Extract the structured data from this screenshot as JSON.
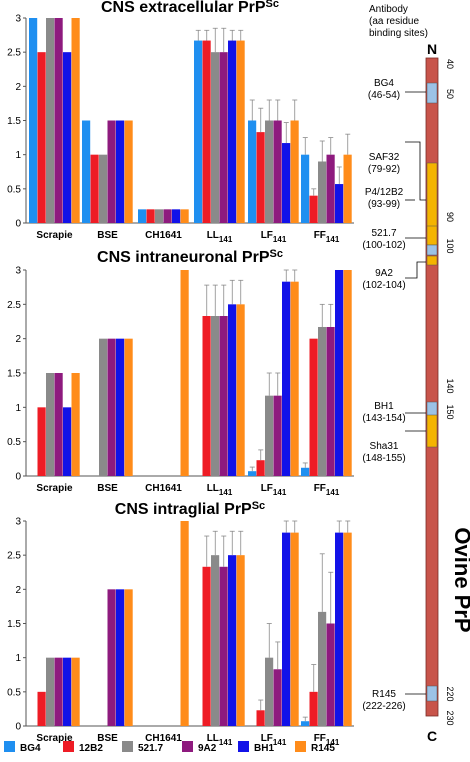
{
  "chart_data": [
    {
      "type": "bar",
      "title": "CNS extracellular PrP",
      "title_sup": "Sc",
      "categories": [
        "Scrapie",
        "BSE",
        "CH1641",
        "LL",
        "LF",
        "FF"
      ],
      "category_subscripts": [
        "",
        "",
        "",
        "141",
        "141",
        "141"
      ],
      "ylim": [
        0,
        3
      ],
      "yticks": [
        "0",
        "0.5",
        "1",
        "1.5",
        "2",
        "2.5",
        "3"
      ],
      "series": [
        {
          "name": "BG4",
          "values": [
            3.0,
            1.5,
            0.2,
            2.67,
            1.5,
            1.0
          ],
          "errors": [
            0,
            0,
            0,
            0.15,
            0.3,
            0.25
          ]
        },
        {
          "name": "12B2",
          "values": [
            2.5,
            1.0,
            0.2,
            2.67,
            1.33,
            0.4
          ],
          "errors": [
            0,
            0,
            0,
            0.15,
            0.35,
            0.1
          ]
        },
        {
          "name": "521.7",
          "values": [
            3.0,
            1.0,
            0.2,
            2.5,
            1.5,
            0.9
          ],
          "errors": [
            0,
            0,
            0,
            0.35,
            0.3,
            0.3
          ]
        },
        {
          "name": "9A2",
          "values": [
            3.0,
            1.5,
            0.2,
            2.5,
            1.5,
            1.0
          ],
          "errors": [
            0,
            0,
            0,
            0.35,
            0.3,
            0.25
          ]
        },
        {
          "name": "BH1",
          "values": [
            2.5,
            1.5,
            0.2,
            2.67,
            1.17,
            0.57
          ],
          "errors": [
            0,
            0,
            0,
            0.15,
            0.3,
            0.25
          ]
        },
        {
          "name": "R145",
          "values": [
            3.0,
            1.5,
            0.2,
            2.67,
            1.5,
            1.0
          ],
          "errors": [
            0,
            0,
            0,
            0.15,
            0.3,
            0.3
          ]
        }
      ]
    },
    {
      "type": "bar",
      "title": "CNS intraneuronal PrP",
      "title_sup": "Sc",
      "categories": [
        "Scrapie",
        "BSE",
        "CH1641",
        "LL",
        "LF",
        "FF"
      ],
      "category_subscripts": [
        "",
        "",
        "",
        "141",
        "141",
        "141"
      ],
      "ylim": [
        0,
        3
      ],
      "yticks": [
        "0",
        "0.5",
        "1",
        "1.5",
        "2",
        "2.5",
        "3"
      ],
      "series": [
        {
          "name": "BG4",
          "values": [
            0,
            0,
            0,
            0,
            0.07,
            0.12
          ],
          "errors": [
            0,
            0,
            0,
            0,
            0.06,
            0.07
          ]
        },
        {
          "name": "12B2",
          "values": [
            1.0,
            0,
            0,
            2.33,
            0.23,
            2.0
          ],
          "errors": [
            0,
            0,
            0,
            0.45,
            0.15,
            0
          ]
        },
        {
          "name": "521.7",
          "values": [
            1.5,
            2.0,
            0,
            2.33,
            1.17,
            2.17
          ],
          "errors": [
            0,
            0,
            0,
            0.45,
            0.33,
            0.33
          ]
        },
        {
          "name": "9A2",
          "values": [
            1.5,
            2.0,
            0,
            2.33,
            1.17,
            2.17
          ],
          "errors": [
            0,
            0,
            0,
            0.45,
            0.33,
            0.33
          ]
        },
        {
          "name": "BH1",
          "values": [
            1.0,
            2.0,
            0,
            2.5,
            2.83,
            3.0
          ],
          "errors": [
            0,
            0,
            0,
            0.35,
            0.17,
            0
          ]
        },
        {
          "name": "R145",
          "values": [
            1.5,
            2.0,
            3.0,
            2.5,
            2.83,
            3.0
          ],
          "errors": [
            0,
            0,
            0,
            0.35,
            0.17,
            0
          ]
        }
      ]
    },
    {
      "type": "bar",
      "title": "CNS intraglial PrP",
      "title_sup": "Sc",
      "categories": [
        "Scrapie",
        "BSE",
        "CH1641",
        "LL",
        "LF",
        "FF"
      ],
      "category_subscripts": [
        "",
        "",
        "",
        "141",
        "141",
        "141"
      ],
      "ylim": [
        0,
        3
      ],
      "yticks": [
        "0",
        "0.5",
        "1",
        "1.5",
        "2",
        "2.5",
        "3"
      ],
      "series": [
        {
          "name": "BG4",
          "values": [
            0,
            0,
            0,
            0,
            0,
            0.07
          ],
          "errors": [
            0,
            0,
            0,
            0,
            0,
            0.06
          ]
        },
        {
          "name": "12B2",
          "values": [
            0.5,
            0,
            0,
            2.33,
            0.23,
            0.5
          ],
          "errors": [
            0,
            0,
            0,
            0.45,
            0.15,
            0.4
          ]
        },
        {
          "name": "521.7",
          "values": [
            1.0,
            0,
            0,
            2.5,
            1.0,
            1.67
          ],
          "errors": [
            0,
            0,
            0,
            0.35,
            0.5,
            0.85
          ]
        },
        {
          "name": "9A2",
          "values": [
            1.0,
            2.0,
            0,
            2.33,
            0.83,
            1.5
          ],
          "errors": [
            0,
            0,
            0,
            0.45,
            0.4,
            0.75
          ]
        },
        {
          "name": "BH1",
          "values": [
            1.0,
            2.0,
            0,
            2.5,
            2.83,
            2.83
          ],
          "errors": [
            0,
            0,
            0,
            0.35,
            0.17,
            0.17
          ]
        },
        {
          "name": "R145",
          "values": [
            1.0,
            2.0,
            3.0,
            2.5,
            2.83,
            2.83
          ],
          "errors": [
            0,
            0,
            0,
            0.35,
            0.17,
            0.17
          ]
        }
      ]
    }
  ],
  "colors": {
    "BG4": "#1f8ff0",
    "12B2": "#ee1c25",
    "521.7": "#8a8a8a",
    "9A2": "#8e1a7e",
    "BH1": "#1212e8",
    "R145": "#ff8c1a",
    "prp_bar": "#c8544a",
    "epitope_blue": "#9cc2e6",
    "epitope_orange": "#f5b300"
  },
  "legend": [
    "BG4",
    "12B2",
    "521.7",
    "9A2",
    "BH1",
    "R145"
  ],
  "antibody_panel": {
    "header": "Antibody\n(aa residue\nbinding sites)",
    "n_terminus": "N",
    "c_terminus": "C",
    "protein_label": "Ovine PrP",
    "residue_marks": [
      "40",
      "50",
      "90",
      "100",
      "140",
      "150",
      "220",
      "230"
    ],
    "antibodies": [
      {
        "name": "BG4",
        "sites": "(46-54)"
      },
      {
        "name": "SAF32",
        "sites": "(79-92)"
      },
      {
        "name": "P4/12B2",
        "sites": "(93-99)"
      },
      {
        "name": "521.7",
        "sites": "(100-102)"
      },
      {
        "name": "9A2",
        "sites": "(102-104)"
      },
      {
        "name": "BH1",
        "sites": "(143-154)"
      },
      {
        "name": "Sha31",
        "sites": "(148-155)"
      },
      {
        "name": "R145",
        "sites": "(222-226)"
      }
    ]
  }
}
